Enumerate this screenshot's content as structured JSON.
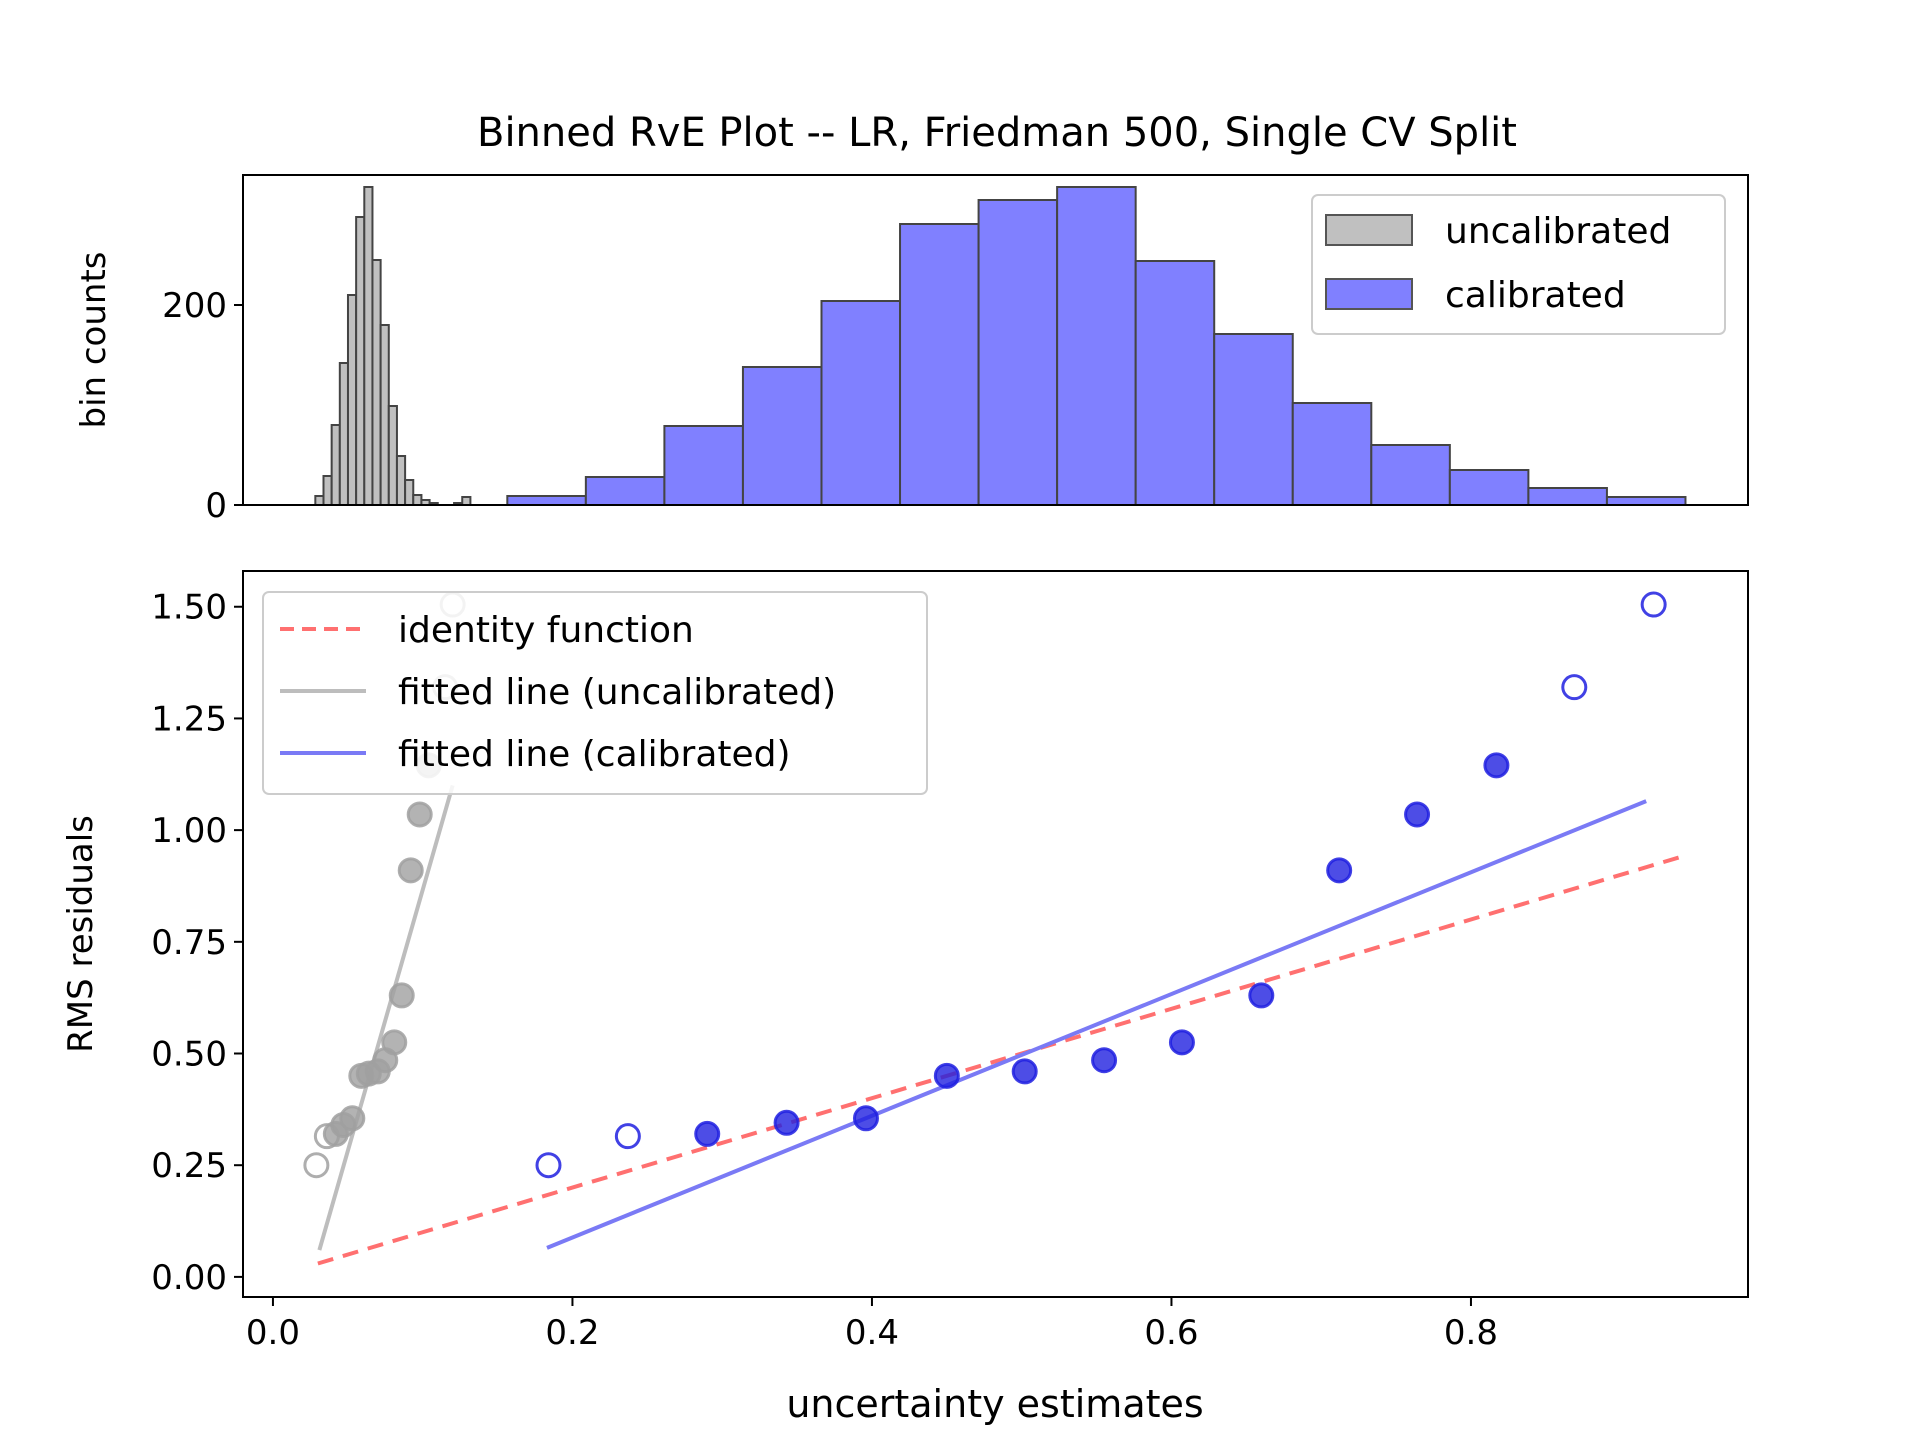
{
  "title": "Binned RvE Plot -- LR, Friedman 500, Single CV Split",
  "colors": {
    "uncalibrated_fill": "#c0c0c0",
    "uncalibrated_point": "#a0a0a0",
    "calibrated_fill": "#8080ff",
    "calibrated_point": "#2020e0",
    "identity": "#ff7070",
    "fit_uncal": "#bdbdbd",
    "fit_cal": "#7a7af5",
    "edge": "#333333"
  },
  "chart_data": [
    {
      "type": "bar",
      "subtype": "histogram",
      "ylabel": "bin counts",
      "yticks": [
        0,
        200
      ],
      "ylim": [
        0,
        330
      ],
      "xlim": [
        -0.02,
        0.985
      ],
      "legend": {
        "placement": "top-right",
        "entries": [
          {
            "label": "uncalibrated",
            "color": "#c0c0c0"
          },
          {
            "label": "calibrated",
            "color": "#8080ff"
          }
        ]
      },
      "series": [
        {
          "name": "uncalibrated",
          "color": "#c0c0c0",
          "bin_start": 0.0283,
          "bin_width": 0.00545,
          "counts": [
            9,
            29,
            80,
            142,
            210,
            288,
            318,
            245,
            180,
            99,
            49,
            25,
            10,
            5,
            2,
            0,
            0,
            2,
            8
          ]
        },
        {
          "name": "calibrated",
          "color": "#8080ff",
          "bin_start": 0.1565,
          "bin_width": 0.05245,
          "counts": [
            9,
            28,
            79,
            138,
            204,
            281,
            305,
            318,
            244,
            171,
            102,
            60,
            35,
            17,
            8
          ]
        }
      ]
    },
    {
      "type": "scatter",
      "xlabel": "uncertainty estimates",
      "ylabel": "RMS residuals",
      "xticks": [
        "0.0",
        "0.2",
        "0.4",
        "0.6",
        "0.8"
      ],
      "xtick_values": [
        0.0,
        0.2,
        0.4,
        0.6,
        0.8
      ],
      "yticks": [
        "0.00",
        "0.25",
        "0.50",
        "0.75",
        "1.00",
        "1.25",
        "1.50"
      ],
      "ytick_values": [
        0.0,
        0.25,
        0.5,
        0.75,
        1.0,
        1.25,
        1.5
      ],
      "xlim": [
        -0.02,
        0.985
      ],
      "ylim": [
        -0.045,
        1.58
      ],
      "legend": {
        "placement": "top-left",
        "entries": [
          {
            "label": "identity function",
            "color": "#ff7070",
            "style": "dashed"
          },
          {
            "label": "fitted line (uncalibrated)",
            "color": "#bdbdbd",
            "style": "solid"
          },
          {
            "label": "fitted line (calibrated)",
            "color": "#7a7af5",
            "style": "solid"
          }
        ]
      },
      "lines": [
        {
          "name": "identity function",
          "x": [
            0.03,
            0.94
          ],
          "y": [
            0.03,
            0.94
          ]
        },
        {
          "name": "fitted line (uncalibrated)",
          "x": [
            0.031,
            0.12
          ],
          "y": [
            0.06,
            1.1
          ]
        },
        {
          "name": "fitted line (calibrated)",
          "x": [
            0.183,
            0.917
          ],
          "y": [
            0.065,
            1.065
          ]
        }
      ],
      "points_uncalibrated": [
        {
          "x": 0.029,
          "y": 0.25,
          "filled": false
        },
        {
          "x": 0.036,
          "y": 0.315,
          "filled": false
        },
        {
          "x": 0.042,
          "y": 0.32,
          "filled": true
        },
        {
          "x": 0.047,
          "y": 0.34,
          "filled": true
        },
        {
          "x": 0.053,
          "y": 0.355,
          "filled": true
        },
        {
          "x": 0.059,
          "y": 0.45,
          "filled": true
        },
        {
          "x": 0.064,
          "y": 0.455,
          "filled": true
        },
        {
          "x": 0.07,
          "y": 0.46,
          "filled": true
        },
        {
          "x": 0.075,
          "y": 0.485,
          "filled": true
        },
        {
          "x": 0.081,
          "y": 0.525,
          "filled": true
        },
        {
          "x": 0.086,
          "y": 0.63,
          "filled": true
        },
        {
          "x": 0.092,
          "y": 0.91,
          "filled": true
        },
        {
          "x": 0.098,
          "y": 1.035,
          "filled": true
        },
        {
          "x": 0.104,
          "y": 1.145,
          "filled": true
        },
        {
          "x": 0.115,
          "y": 1.32,
          "filled": false
        },
        {
          "x": 0.12,
          "y": 1.505,
          "filled": false
        }
      ],
      "points_calibrated": [
        {
          "x": 0.184,
          "y": 0.25,
          "filled": false
        },
        {
          "x": 0.237,
          "y": 0.315,
          "filled": false
        },
        {
          "x": 0.29,
          "y": 0.32,
          "filled": true
        },
        {
          "x": 0.343,
          "y": 0.345,
          "filled": true
        },
        {
          "x": 0.396,
          "y": 0.355,
          "filled": true
        },
        {
          "x": 0.45,
          "y": 0.45,
          "filled": true
        },
        {
          "x": 0.502,
          "y": 0.46,
          "filled": true
        },
        {
          "x": 0.555,
          "y": 0.485,
          "filled": true
        },
        {
          "x": 0.607,
          "y": 0.525,
          "filled": true
        },
        {
          "x": 0.66,
          "y": 0.63,
          "filled": true
        },
        {
          "x": 0.712,
          "y": 0.91,
          "filled": true
        },
        {
          "x": 0.764,
          "y": 1.035,
          "filled": true
        },
        {
          "x": 0.817,
          "y": 1.145,
          "filled": true
        },
        {
          "x": 0.869,
          "y": 1.32,
          "filled": false
        },
        {
          "x": 0.922,
          "y": 1.505,
          "filled": false
        }
      ]
    }
  ]
}
